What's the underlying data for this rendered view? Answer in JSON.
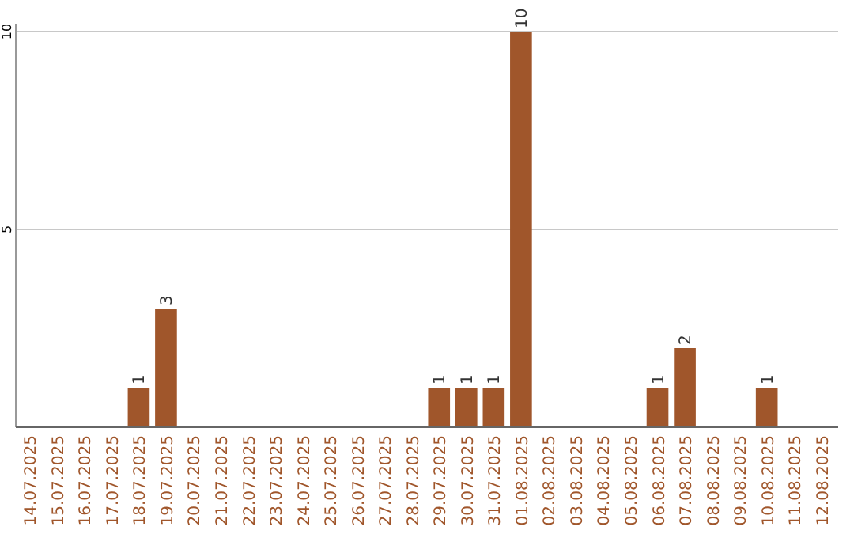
{
  "chart_data": {
    "type": "bar",
    "categories": [
      "14.07.2025",
      "15.07.2025",
      "16.07.2025",
      "17.07.2025",
      "18.07.2025",
      "19.07.2025",
      "20.07.2025",
      "21.07.2025",
      "22.07.2025",
      "23.07.2025",
      "24.07.2025",
      "25.07.2025",
      "26.07.2025",
      "27.07.2025",
      "28.07.2025",
      "29.07.2025",
      "30.07.2025",
      "31.07.2025",
      "01.08.2025",
      "02.08.2025",
      "03.08.2025",
      "04.08.2025",
      "05.08.2025",
      "06.08.2025",
      "07.08.2025",
      "08.08.2025",
      "09.08.2025",
      "10.08.2025",
      "11.08.2025",
      "12.08.2025"
    ],
    "values": [
      0,
      0,
      0,
      0,
      1,
      3,
      0,
      0,
      0,
      0,
      0,
      0,
      0,
      0,
      0,
      1,
      1,
      1,
      10,
      0,
      0,
      0,
      0,
      1,
      2,
      0,
      0,
      1,
      0,
      0
    ],
    "value_labels": [
      null,
      null,
      null,
      null,
      "1",
      "3",
      null,
      null,
      null,
      null,
      null,
      null,
      null,
      null,
      null,
      "1",
      "1",
      "1",
      "10",
      null,
      null,
      null,
      null,
      "1",
      "2",
      null,
      null,
      "1",
      null,
      null
    ],
    "color": "#a0562b",
    "ylim": [
      0,
      10
    ],
    "yticks": [
      5,
      10
    ],
    "grid": "y"
  }
}
